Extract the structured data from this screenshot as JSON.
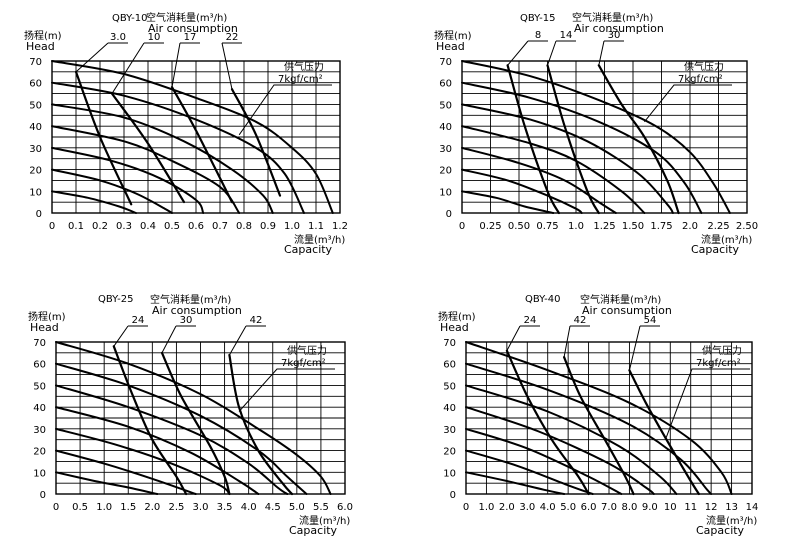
{
  "chart_data": [
    {
      "type": "line",
      "title": "QBY-10",
      "ylabel_cn": "扬程(m)",
      "ylabel": "Head",
      "xlabel_cn": "流量(m³/h)",
      "xlabel": "Capacity",
      "air_label_cn": "空气消耗量(m³/h)",
      "air_label": "Air consumption",
      "pressure_label_cn": "供气压力",
      "pressure_label": "7kgf/cm²",
      "xticks": [
        "0",
        "0.1",
        "0.2",
        "0.3",
        "0.4",
        "0.5",
        "0.6",
        "0.7",
        "0.8",
        "0.9",
        "1.0",
        "1.1",
        "1.2"
      ],
      "yticks": [
        "0",
        "10",
        "20",
        "30",
        "40",
        "50",
        "60",
        "70"
      ],
      "xlim": [
        0,
        1.2
      ],
      "ylim": [
        0,
        70
      ],
      "grid": true,
      "air_consumption": [
        {
          "label": "3.0",
          "points": [
            [
              0.1,
              65
            ],
            [
              0.2,
              35
            ],
            [
              0.33,
              4
            ]
          ]
        },
        {
          "label": "10",
          "points": [
            [
              0.25,
              55
            ],
            [
              0.4,
              32
            ],
            [
              0.55,
              5
            ]
          ]
        },
        {
          "label": "17",
          "points": [
            [
              0.5,
              58
            ],
            [
              0.6,
              38
            ],
            [
              0.75,
              5
            ]
          ]
        },
        {
          "label": "22",
          "points": [
            [
              0.75,
              57
            ],
            [
              0.85,
              36
            ],
            [
              0.95,
              8
            ]
          ]
        }
      ],
      "series": [
        {
          "points": [
            [
              0,
              70
            ],
            [
              0.3,
              64
            ],
            [
              0.6,
              53
            ],
            [
              0.85,
              42
            ],
            [
              1.0,
              30
            ],
            [
              1.1,
              18
            ],
            [
              1.17,
              0
            ]
          ]
        },
        {
          "points": [
            [
              0,
              60
            ],
            [
              0.3,
              54
            ],
            [
              0.6,
              43
            ],
            [
              0.85,
              30
            ],
            [
              0.97,
              18
            ],
            [
              1.05,
              0
            ]
          ]
        },
        {
          "points": [
            [
              0,
              50
            ],
            [
              0.3,
              44
            ],
            [
              0.55,
              33
            ],
            [
              0.75,
              20
            ],
            [
              0.88,
              8
            ],
            [
              0.92,
              0
            ]
          ]
        },
        {
          "points": [
            [
              0,
              40
            ],
            [
              0.3,
              33
            ],
            [
              0.5,
              24
            ],
            [
              0.7,
              12
            ],
            [
              0.78,
              0
            ]
          ]
        },
        {
          "points": [
            [
              0,
              30
            ],
            [
              0.25,
              24
            ],
            [
              0.45,
              16
            ],
            [
              0.6,
              6
            ],
            [
              0.63,
              0
            ]
          ]
        },
        {
          "points": [
            [
              0,
              20
            ],
            [
              0.2,
              15
            ],
            [
              0.35,
              9
            ],
            [
              0.47,
              2
            ],
            [
              0.5,
              0
            ]
          ]
        },
        {
          "points": [
            [
              0,
              10
            ],
            [
              0.15,
              7
            ],
            [
              0.28,
              3
            ],
            [
              0.35,
              0
            ]
          ]
        }
      ]
    },
    {
      "type": "line",
      "title": "QBY-15",
      "ylabel_cn": "扬程(m)",
      "ylabel": "Head",
      "xlabel_cn": "流量(m³/h)",
      "xlabel": "Capacity",
      "air_label_cn": "空气消耗量(m³/h)",
      "air_label": "Air consumption",
      "pressure_label_cn": "供气压力",
      "pressure_label": "7kgf/cm²",
      "xticks": [
        "0",
        "0.25",
        "0.50",
        "0.75",
        "1.0",
        "1.25",
        "1.50",
        "1.75",
        "2.0",
        "2.25",
        "2.50"
      ],
      "yticks": [
        "0",
        "10",
        "20",
        "30",
        "40",
        "50",
        "60",
        "70"
      ],
      "xlim": [
        0,
        2.5
      ],
      "ylim": [
        0,
        70
      ],
      "grid": true,
      "air_consumption": [
        {
          "label": "8",
          "points": [
            [
              0.4,
              68
            ],
            [
              0.55,
              40
            ],
            [
              0.75,
              10
            ],
            [
              0.85,
              0
            ]
          ]
        },
        {
          "label": "14",
          "points": [
            [
              0.75,
              68
            ],
            [
              0.9,
              40
            ],
            [
              1.1,
              10
            ],
            [
              1.2,
              0
            ]
          ]
        },
        {
          "label": "30",
          "points": [
            [
              1.2,
              68
            ],
            [
              1.4,
              50
            ],
            [
              1.6,
              35
            ],
            [
              1.8,
              15
            ],
            [
              1.9,
              0
            ]
          ]
        }
      ],
      "series": [
        {
          "points": [
            [
              0,
              70
            ],
            [
              0.6,
              63
            ],
            [
              1.2,
              52
            ],
            [
              1.7,
              40
            ],
            [
              2.0,
              28
            ],
            [
              2.2,
              14
            ],
            [
              2.35,
              0
            ]
          ]
        },
        {
          "points": [
            [
              0,
              60
            ],
            [
              0.6,
              53
            ],
            [
              1.2,
              42
            ],
            [
              1.7,
              28
            ],
            [
              1.95,
              14
            ],
            [
              2.1,
              0
            ]
          ]
        },
        {
          "points": [
            [
              0,
              50
            ],
            [
              0.6,
              43
            ],
            [
              1.1,
              33
            ],
            [
              1.55,
              18
            ],
            [
              1.8,
              4
            ],
            [
              1.85,
              0
            ]
          ]
        },
        {
          "points": [
            [
              0,
              40
            ],
            [
              0.6,
              32
            ],
            [
              1.0,
              24
            ],
            [
              1.4,
              10
            ],
            [
              1.6,
              0
            ]
          ]
        },
        {
          "points": [
            [
              0,
              30
            ],
            [
              0.5,
              23
            ],
            [
              0.9,
              15
            ],
            [
              1.2,
              5
            ],
            [
              1.35,
              0
            ]
          ]
        },
        {
          "points": [
            [
              0,
              20
            ],
            [
              0.4,
              15
            ],
            [
              0.75,
              8
            ],
            [
              1.0,
              2
            ],
            [
              1.05,
              0
            ]
          ]
        },
        {
          "points": [
            [
              0,
              10
            ],
            [
              0.3,
              7
            ],
            [
              0.55,
              3
            ],
            [
              0.8,
              0
            ]
          ]
        }
      ]
    },
    {
      "type": "line",
      "title": "QBY-25",
      "ylabel_cn": "扬程(m)",
      "ylabel": "Head",
      "xlabel_cn": "流量(m³/h)",
      "xlabel": "Capacity",
      "air_label_cn": "空气消耗量(m³/h)",
      "air_label": "Air consumption",
      "pressure_label_cn": "供气压力",
      "pressure_label": "7kgf/cm²",
      "xticks": [
        "0",
        "0.5",
        "1.0",
        "1.5",
        "2.0",
        "2.5",
        "3.0",
        "3.5",
        "4.0",
        "4.5",
        "5.0",
        "5.5",
        "6.0"
      ],
      "yticks": [
        "0",
        "10",
        "20",
        "30",
        "40",
        "50",
        "60",
        "70"
      ],
      "xlim": [
        0,
        6.0
      ],
      "ylim": [
        0,
        70
      ],
      "grid": true,
      "air_consumption": [
        {
          "label": "24",
          "points": [
            [
              1.2,
              68
            ],
            [
              1.6,
              45
            ],
            [
              2.0,
              25
            ],
            [
              2.5,
              8
            ],
            [
              2.7,
              0
            ]
          ]
        },
        {
          "label": "30",
          "points": [
            [
              2.2,
              65
            ],
            [
              2.6,
              45
            ],
            [
              3.2,
              22
            ],
            [
              3.5,
              8
            ],
            [
              3.6,
              0
            ]
          ]
        },
        {
          "label": "42",
          "points": [
            [
              3.6,
              64
            ],
            [
              3.8,
              40
            ],
            [
              4.2,
              20
            ],
            [
              4.7,
              5
            ],
            [
              4.9,
              0
            ]
          ]
        }
      ],
      "series": [
        {
          "points": [
            [
              0,
              70
            ],
            [
              1.5,
              60
            ],
            [
              3.0,
              46
            ],
            [
              4.2,
              30
            ],
            [
              5.0,
              18
            ],
            [
              5.5,
              8
            ],
            [
              5.7,
              0
            ]
          ]
        },
        {
          "points": [
            [
              0,
              60
            ],
            [
              1.5,
              50
            ],
            [
              3.0,
              36
            ],
            [
              4.2,
              20
            ],
            [
              4.8,
              8
            ],
            [
              5.2,
              0
            ]
          ]
        },
        {
          "points": [
            [
              0,
              50
            ],
            [
              1.5,
              40
            ],
            [
              3.0,
              27
            ],
            [
              4.0,
              14
            ],
            [
              4.6,
              3
            ],
            [
              4.8,
              0
            ]
          ]
        },
        {
          "points": [
            [
              0,
              40
            ],
            [
              1.5,
              31
            ],
            [
              2.8,
              19
            ],
            [
              3.8,
              6
            ],
            [
              4.2,
              0
            ]
          ]
        },
        {
          "points": [
            [
              0,
              30
            ],
            [
              1.2,
              23
            ],
            [
              2.4,
              14
            ],
            [
              3.4,
              4
            ],
            [
              3.6,
              0
            ]
          ]
        },
        {
          "points": [
            [
              0,
              20
            ],
            [
              1.0,
              14
            ],
            [
              2.0,
              7
            ],
            [
              2.9,
              0
            ]
          ]
        },
        {
          "points": [
            [
              0,
              10
            ],
            [
              0.8,
              6
            ],
            [
              1.5,
              3
            ],
            [
              2.1,
              0
            ]
          ]
        }
      ]
    },
    {
      "type": "line",
      "title": "QBY-40",
      "ylabel_cn": "扬程(m)",
      "ylabel": "Head",
      "xlabel_cn": "流量(m³/h)",
      "xlabel": "Capacity",
      "air_label_cn": "空气消耗量(m³/h)",
      "air_label": "Air consumption",
      "pressure_label_cn": "供气压力",
      "pressure_label": "7kgf/cm²",
      "xticks": [
        "0",
        "1.0",
        "2.0",
        "3.0",
        "4.0",
        "5.0",
        "6.0",
        "7.0",
        "8.0",
        "9.0",
        "10",
        "11",
        "12",
        "13",
        "14"
      ],
      "yticks": [
        "0",
        "10",
        "20",
        "30",
        "40",
        "50",
        "60",
        "70"
      ],
      "xlim": [
        0,
        14
      ],
      "ylim": [
        0,
        70
      ],
      "grid": true,
      "air_consumption": [
        {
          "label": "24",
          "points": [
            [
              2.0,
              66
            ],
            [
              3.0,
              45
            ],
            [
              4.2,
              25
            ],
            [
              5.5,
              8
            ],
            [
              6.0,
              0
            ]
          ]
        },
        {
          "label": "42",
          "points": [
            [
              4.8,
              63
            ],
            [
              5.6,
              45
            ],
            [
              6.8,
              25
            ],
            [
              7.8,
              8
            ],
            [
              8.2,
              0
            ]
          ]
        },
        {
          "label": "54",
          "points": [
            [
              8.0,
              57
            ],
            [
              8.8,
              42
            ],
            [
              10.0,
              22
            ],
            [
              11.0,
              6
            ],
            [
              11.4,
              0
            ]
          ]
        }
      ],
      "series": [
        {
          "points": [
            [
              0,
              70
            ],
            [
              4.0,
              57
            ],
            [
              8.0,
              42
            ],
            [
              11.0,
              25
            ],
            [
              12.5,
              10
            ],
            [
              13.0,
              0
            ]
          ]
        },
        {
          "points": [
            [
              0,
              60
            ],
            [
              4.0,
              48
            ],
            [
              8.0,
              32
            ],
            [
              10.5,
              16
            ],
            [
              11.8,
              2
            ],
            [
              12.0,
              0
            ]
          ]
        },
        {
          "points": [
            [
              0,
              50
            ],
            [
              4.0,
              38
            ],
            [
              7.5,
              22
            ],
            [
              9.5,
              8
            ],
            [
              10.3,
              0
            ]
          ]
        },
        {
          "points": [
            [
              0,
              40
            ],
            [
              3.5,
              29
            ],
            [
              7.0,
              14
            ],
            [
              8.8,
              3
            ],
            [
              9.2,
              0
            ]
          ]
        },
        {
          "points": [
            [
              0,
              30
            ],
            [
              3.0,
              21
            ],
            [
              6.0,
              8
            ],
            [
              7.6,
              0
            ]
          ]
        },
        {
          "points": [
            [
              0,
              20
            ],
            [
              2.5,
              13
            ],
            [
              5.0,
              4
            ],
            [
              6.2,
              0
            ]
          ]
        },
        {
          "points": [
            [
              0,
              10
            ],
            [
              2.0,
              6
            ],
            [
              3.8,
              2
            ],
            [
              4.8,
              0
            ]
          ]
        }
      ]
    }
  ]
}
